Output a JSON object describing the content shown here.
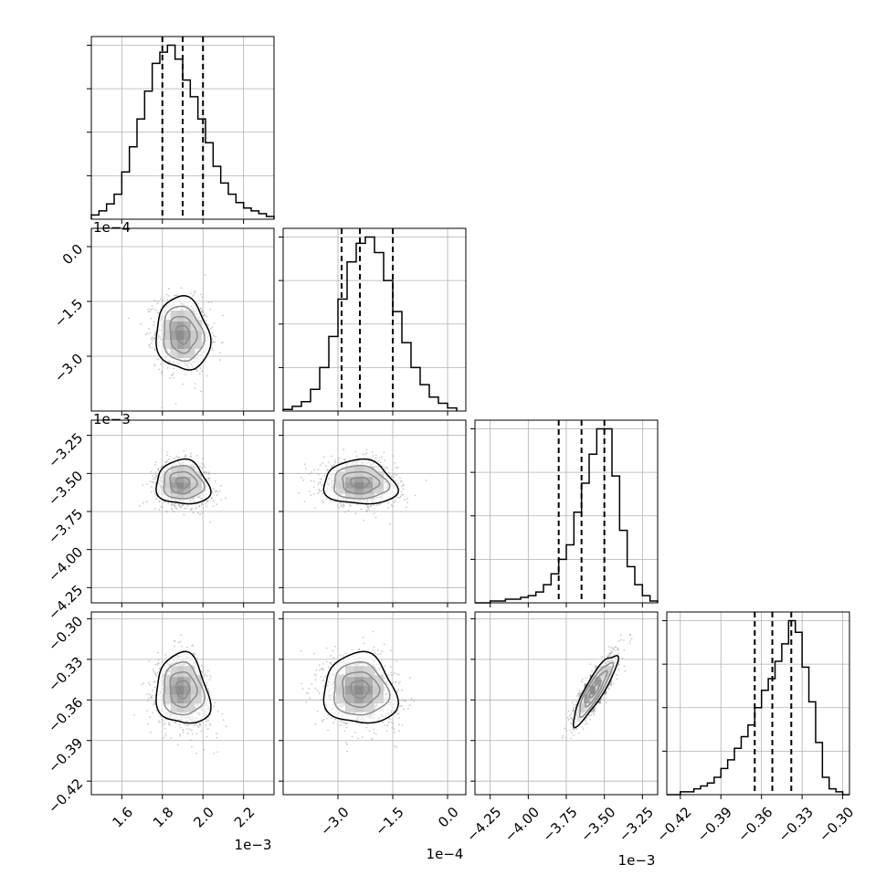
{
  "chart_data": {
    "type": "corner",
    "parameters": [
      {
        "offset_label": "1e−3",
        "range": [
          1.45,
          2.35
        ],
        "ticks": [
          1.6,
          1.8,
          2.0,
          2.2
        ],
        "tick_labels": [
          "1.6",
          "1.8",
          "2.0",
          "2.2"
        ],
        "mean": 1.9,
        "sigma": [
          -0.066,
          0.066
        ],
        "quantiles": [
          1.8,
          1.9,
          2.0
        ],
        "histogram": {
          "edges": [
            1.45,
            1.4875,
            1.525,
            1.5625,
            1.6,
            1.6375,
            1.675,
            1.7125,
            1.75,
            1.7875,
            1.825,
            1.8625,
            1.9,
            1.9375,
            1.975,
            2.0125,
            2.05,
            2.0875,
            2.125,
            2.1625,
            2.2,
            2.2375,
            2.275,
            2.3125,
            2.35
          ],
          "counts": [
            3,
            6,
            11,
            18,
            34,
            52,
            72,
            92,
            112,
            120,
            125,
            115,
            100,
            88,
            72,
            55,
            38,
            26,
            18,
            12,
            8,
            6,
            4,
            2
          ]
        }
      },
      {
        "offset_label": "1e−4",
        "range": [
          -4.5,
          0.5
        ],
        "ticks": [
          -3.0,
          -1.5,
          0.0
        ],
        "tick_labels": [
          "−3.0",
          "−1.5",
          "0.0"
        ],
        "mean": -2.4,
        "sigma": [
          -0.5,
          0.5
        ],
        "quantiles": [
          -2.9,
          -2.4,
          -1.5
        ],
        "histogram": {
          "edges": [
            -4.5,
            -4.25,
            -4.0,
            -3.75,
            -3.5,
            -3.25,
            -3.0,
            -2.75,
            -2.5,
            -2.25,
            -2.0,
            -1.75,
            -1.5,
            -1.25,
            -1.0,
            -0.75,
            -0.5,
            -0.25,
            0.0,
            0.25
          ],
          "counts": [
            1,
            3,
            6,
            14,
            28,
            48,
            72,
            96,
            108,
            112,
            102,
            84,
            64,
            44,
            28,
            17,
            9,
            5,
            2
          ]
        }
      },
      {
        "offset_label": "1e−3",
        "range": [
          -4.35,
          -3.15
        ],
        "ticks": [
          -4.25,
          -4.0,
          -3.75,
          -3.5,
          -3.25
        ],
        "tick_labels": [
          "−4.25",
          "−4.00",
          "−3.75",
          "−3.50",
          "−3.25"
        ],
        "mean": -3.56,
        "sigma": [
          -0.075,
          0.07
        ],
        "quantiles": [
          -3.8,
          -3.65,
          -3.5
        ],
        "histogram": {
          "edges": [
            -4.35,
            -4.3,
            -4.25,
            -4.2,
            -4.15,
            -4.1,
            -4.05,
            -4.0,
            -3.95,
            -3.9,
            -3.85,
            -3.8,
            -3.75,
            -3.7,
            -3.65,
            -3.6,
            -3.55,
            -3.5,
            -3.45,
            -3.4,
            -3.35,
            -3.3,
            -3.25,
            -3.2,
            -3.15
          ],
          "counts": [
            0,
            0,
            1,
            1,
            2,
            2,
            3,
            4,
            6,
            10,
            16,
            24,
            32,
            50,
            66,
            82,
            96,
            96,
            70,
            40,
            20,
            10,
            4,
            1
          ]
        }
      },
      {
        "offset_label": "",
        "range": [
          -0.43,
          -0.295
        ],
        "ticks": [
          -0.42,
          -0.39,
          -0.36,
          -0.33,
          -0.3
        ],
        "tick_labels": [
          "−0.42",
          "−0.39",
          "−0.36",
          "−0.33",
          "−0.30"
        ],
        "mean": -0.352,
        "sigma": [
          -0.013,
          0.013
        ],
        "quantiles": [
          -0.365,
          -0.352,
          -0.338
        ],
        "histogram": {
          "edges": [
            -0.43,
            -0.425,
            -0.42,
            -0.415,
            -0.41,
            -0.405,
            -0.4,
            -0.395,
            -0.39,
            -0.385,
            -0.38,
            -0.375,
            -0.37,
            -0.365,
            -0.36,
            -0.355,
            -0.35,
            -0.345,
            -0.34,
            -0.335,
            -0.33,
            -0.325,
            -0.32,
            -0.315,
            -0.31,
            -0.305,
            -0.3,
            -0.295
          ],
          "counts": [
            0,
            0,
            1,
            1,
            2,
            3,
            4,
            6,
            9,
            12,
            16,
            20,
            24,
            30,
            36,
            40,
            46,
            52,
            60,
            56,
            44,
            32,
            18,
            6,
            2,
            1,
            0
          ]
        }
      }
    ],
    "pairs": [
      {
        "x": 0,
        "y": 1,
        "corr": -0.1,
        "warp": 0.0
      },
      {
        "x": 0,
        "y": 2,
        "corr": 0.0,
        "warp": 0.22
      },
      {
        "x": 1,
        "y": 2,
        "corr": 0.0,
        "warp": 0.18
      },
      {
        "x": 0,
        "y": 3,
        "corr": 0.0,
        "warp": 0.28
      },
      {
        "x": 1,
        "y": 3,
        "corr": 0.0,
        "warp": 0.2
      },
      {
        "x": 2,
        "y": 3,
        "corr": 0.88,
        "warp": 0.0
      }
    ],
    "contour_levels_sigma": [
      0.5,
      1.0,
      1.5,
      2.0
    ],
    "scatter_color": "#9e9e9e",
    "line_color": "#000000",
    "grid": true,
    "legend": "none"
  }
}
